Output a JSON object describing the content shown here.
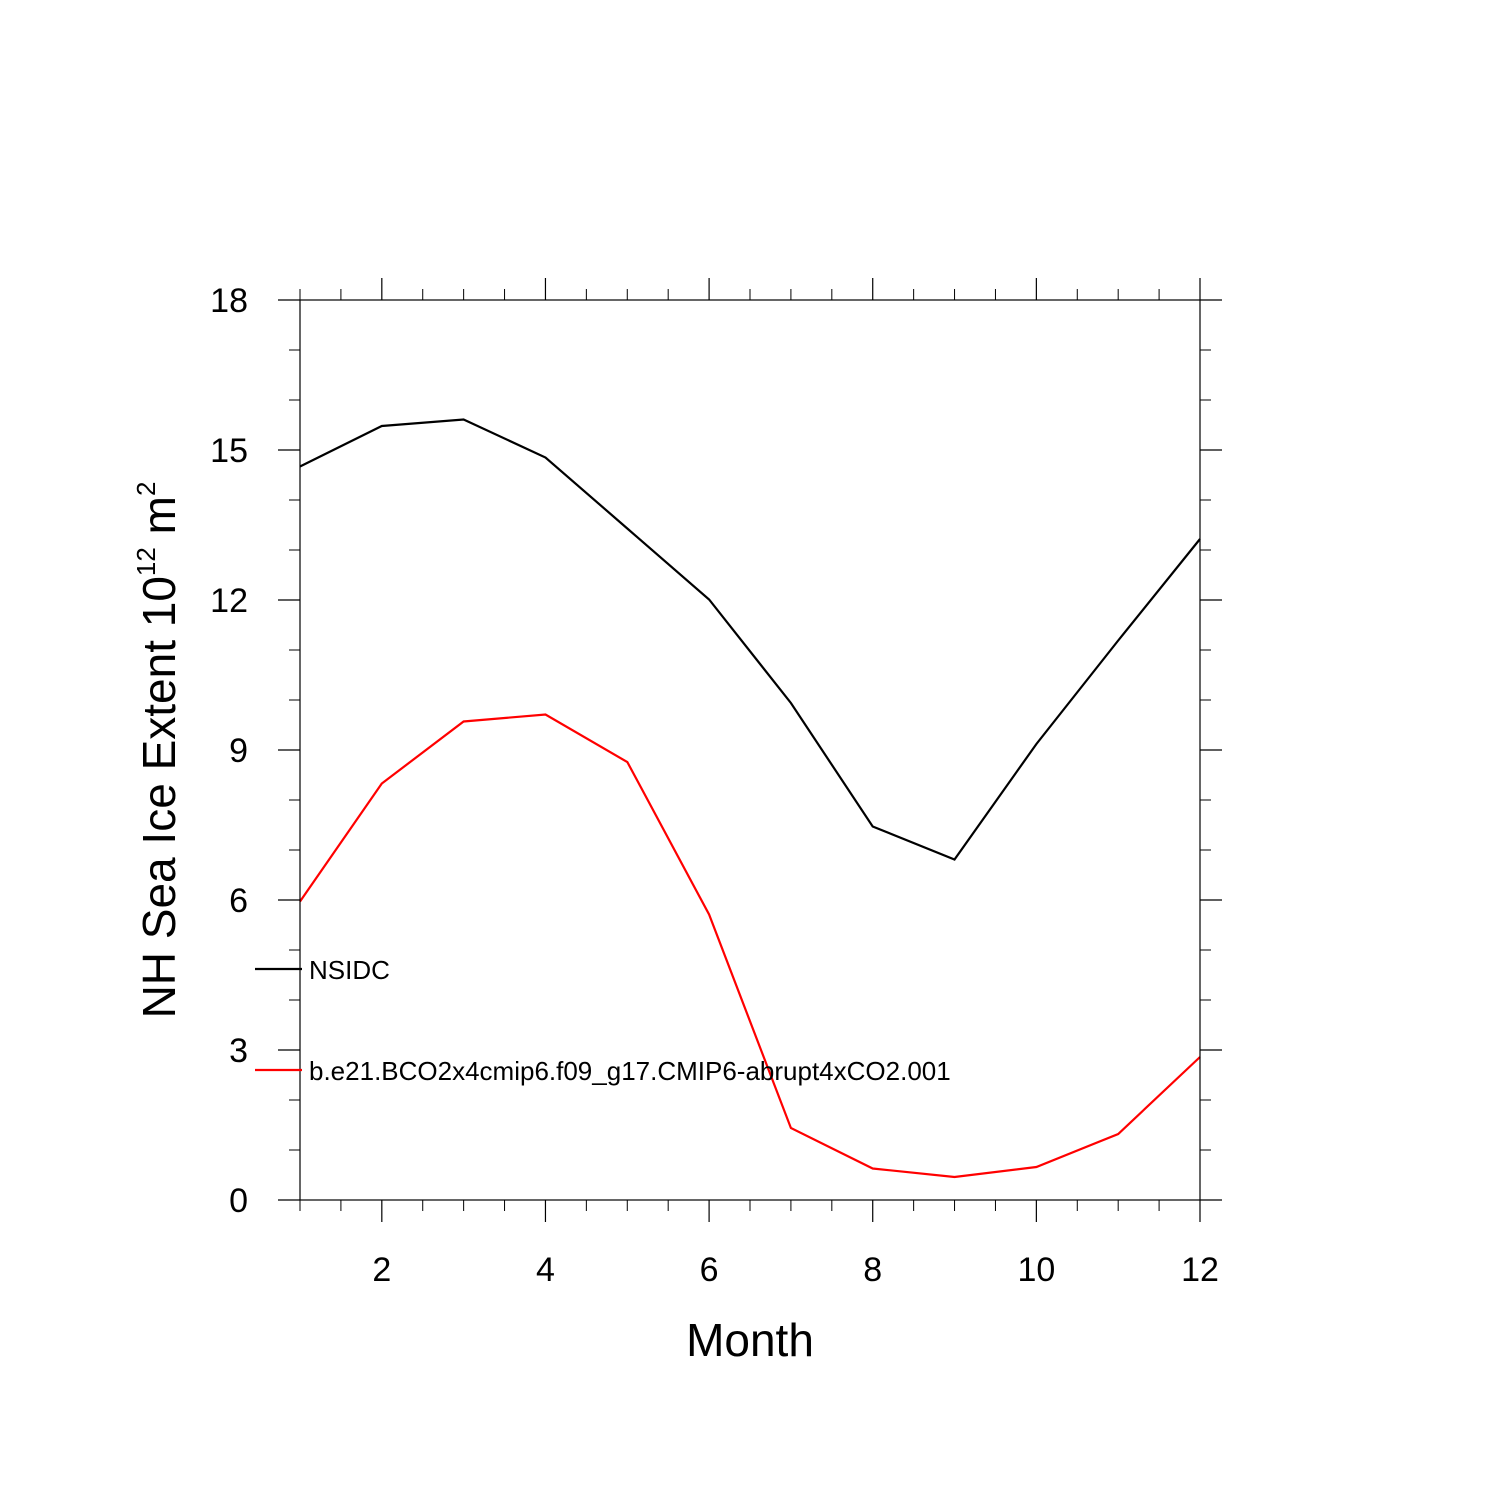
{
  "chart_data": {
    "type": "line",
    "x": [
      1,
      2,
      3,
      4,
      5,
      6,
      7,
      8,
      9,
      10,
      11,
      12
    ],
    "series": [
      {
        "name": "NSIDC",
        "color": "#000000",
        "values": [
          14.67,
          15.48,
          15.61,
          14.85,
          13.43,
          12.01,
          9.94,
          7.47,
          6.81,
          9.12,
          11.19,
          13.22
        ]
      },
      {
        "name": "b.e21.BCO2x4cmip6.f09_g17.CMIP6-abrupt4xCO2.001",
        "color": "#ff0000",
        "values": [
          5.97,
          8.33,
          9.57,
          9.71,
          8.76,
          5.71,
          1.44,
          0.63,
          0.46,
          0.66,
          1.32,
          2.86
        ]
      }
    ],
    "xlabel": "Month",
    "ylabel": "NH Sea Ice Extent 10",
    "ylabel_exp": "12",
    "ylabel_unit": " m",
    "ylabel_unit_exp": "2",
    "xlim": [
      1,
      12
    ],
    "ylim": [
      0,
      18
    ],
    "xticks": [
      2,
      4,
      6,
      8,
      10,
      12
    ],
    "yticks": [
      0,
      3,
      6,
      9,
      12,
      15,
      18
    ],
    "grid": false,
    "legend_position": "left-inside"
  }
}
